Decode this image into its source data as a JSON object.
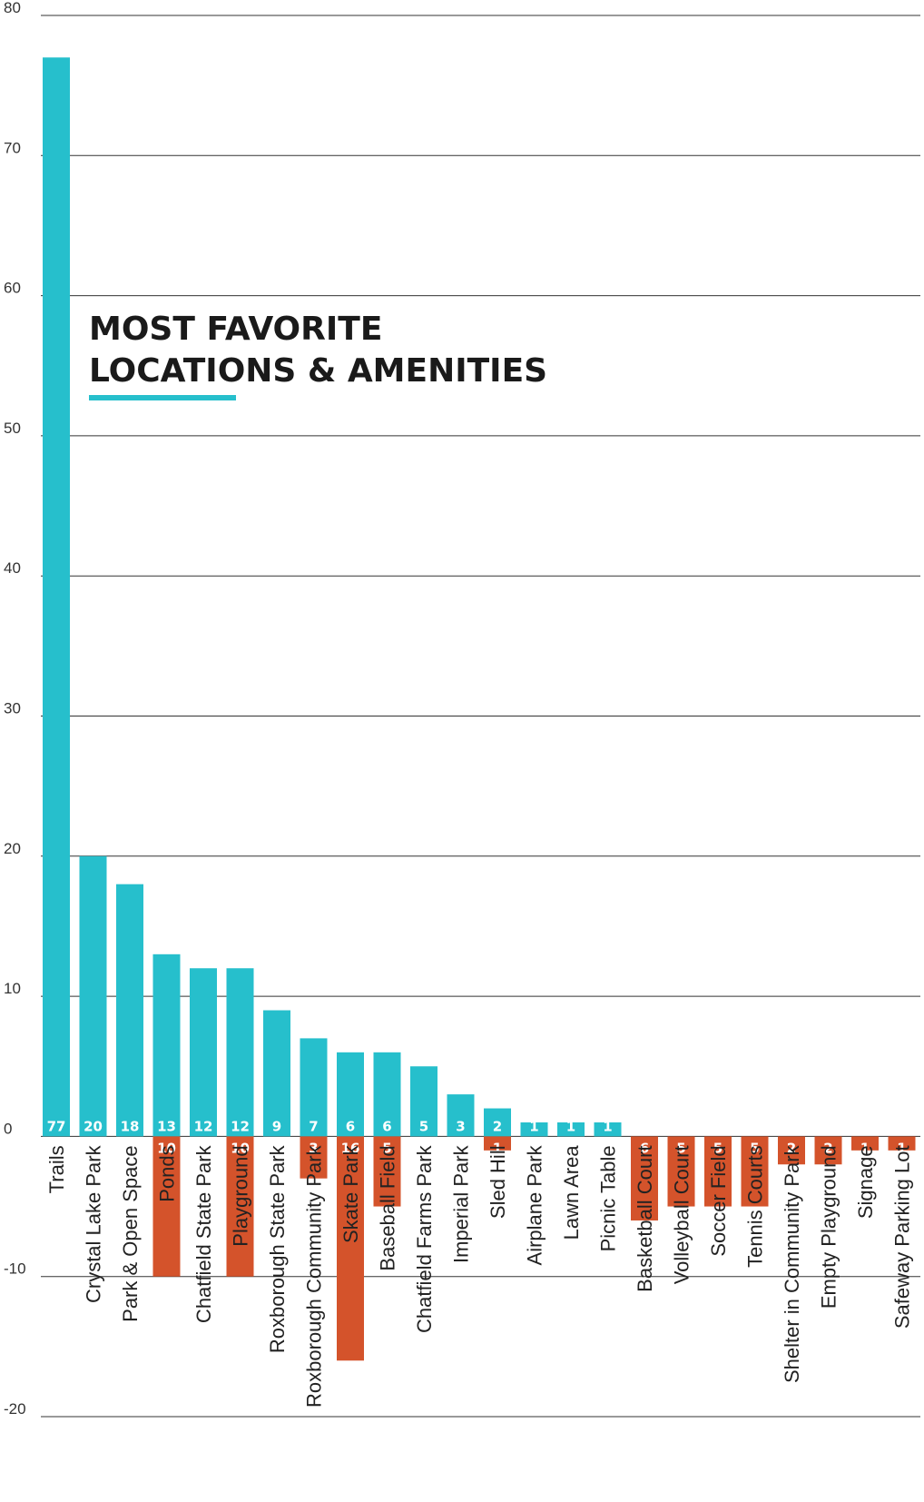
{
  "colors": {
    "favorite": "#26bfcc",
    "least": "#d4532b",
    "grid": "#333333"
  },
  "chart_data": {
    "type": "bar",
    "title": [
      "MOST FAVORITE",
      "LOCATIONS & AMENITIES"
    ],
    "ylim": [
      -20,
      80
    ],
    "yticks": [
      80,
      70,
      60,
      50,
      40,
      30,
      20,
      10,
      0,
      -10,
      -20
    ],
    "grid": true,
    "categories": [
      "Trails",
      "Crystal Lake Park",
      "Park & Open Space",
      "Ponds",
      "Chatfield State Park",
      "Playground",
      "Roxborough State Park",
      "Roxborough Community Park",
      "Skate Park",
      "Baseball Field",
      "Chatfield Farms Park",
      "Imperial Park",
      "Sled Hill",
      "Airplane Park",
      "Lawn Area",
      "Picnic Table",
      "Basketball Court",
      "Volleyball Court",
      "Soccer Field",
      "Tennis Courts",
      "Shelter in Community Park",
      "Empty Playground",
      "Signage",
      "Safeway Parking Lot"
    ],
    "series": [
      {
        "values": [
          77,
          20,
          18,
          13,
          12,
          12,
          9,
          7,
          6,
          6,
          5,
          3,
          2,
          1,
          1,
          1,
          0,
          0,
          0,
          0,
          0,
          0,
          0,
          0
        ]
      },
      {
        "values": [
          0,
          0,
          0,
          -10,
          0,
          -10,
          0,
          -3,
          -16,
          -5,
          0,
          0,
          -1,
          0,
          0,
          0,
          -6,
          -5,
          -5,
          -5,
          -2,
          -2,
          -1,
          -1
        ]
      }
    ]
  }
}
